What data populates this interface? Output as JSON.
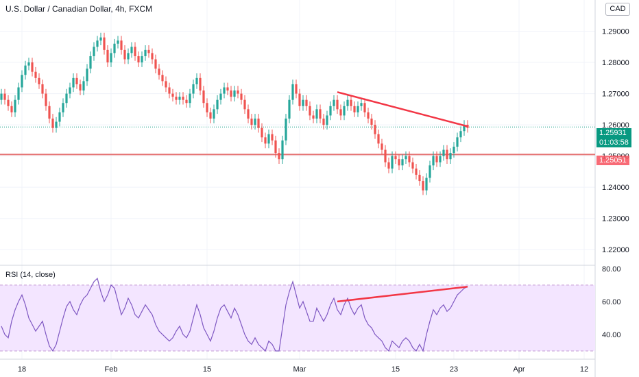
{
  "header": {
    "symbol_title": "U.S. Dollar / Canadian Dollar, 4h, FXCM",
    "currency_button": "CAD"
  },
  "price_tags": {
    "last_price": "1.25931",
    "countdown": "01:03:58",
    "level": "1.25051"
  },
  "indicator": {
    "label": "RSI (14, close)"
  },
  "colors": {
    "up": "#26a69a",
    "down": "#ef5350",
    "rsi_line": "#7e57c2",
    "rsi_band": "#f3e5ff",
    "trendline": "#f23645",
    "level_line": "#e57373",
    "last_price_line": "#089981"
  },
  "chart_data": [
    {
      "type": "candlestick",
      "title": "U.S. Dollar / Canadian Dollar, 4h, FXCM",
      "y_ticks": [
        "1.29000",
        "1.28000",
        "1.27000",
        "1.26000",
        "1.25000",
        "1.24000",
        "1.23000",
        "1.22000"
      ],
      "y_tick_values": [
        1.29,
        1.28,
        1.27,
        1.26,
        1.25,
        1.24,
        1.23,
        1.22
      ],
      "ylim": [
        1.215,
        1.3
      ],
      "x_ticks": [
        "18",
        "Feb",
        "15",
        "Mar",
        "15",
        "23",
        "Apr",
        "12"
      ],
      "x_tick_index": [
        6,
        32,
        60,
        87,
        115,
        132,
        151,
        170
      ],
      "x_count": 175,
      "grid": true,
      "close_series": [
        1.27,
        1.268,
        1.266,
        1.264,
        1.268,
        1.272,
        1.276,
        1.279,
        1.28,
        1.277,
        1.275,
        1.273,
        1.27,
        1.266,
        1.262,
        1.259,
        1.261,
        1.264,
        1.267,
        1.27,
        1.272,
        1.275,
        1.273,
        1.271,
        1.274,
        1.278,
        1.282,
        1.285,
        1.287,
        1.288,
        1.284,
        1.28,
        1.283,
        1.286,
        1.287,
        1.284,
        1.281,
        1.283,
        1.285,
        1.282,
        1.28,
        1.282,
        1.284,
        1.283,
        1.281,
        1.278,
        1.276,
        1.274,
        1.272,
        1.27,
        1.269,
        1.268,
        1.269,
        1.268,
        1.267,
        1.27,
        1.273,
        1.275,
        1.271,
        1.267,
        1.264,
        1.262,
        1.265,
        1.268,
        1.27,
        1.272,
        1.271,
        1.269,
        1.271,
        1.27,
        1.268,
        1.265,
        1.262,
        1.26,
        1.262,
        1.259,
        1.256,
        1.254,
        1.257,
        1.255,
        1.251,
        1.249,
        1.255,
        1.262,
        1.268,
        1.273,
        1.27,
        1.266,
        1.268,
        1.266,
        1.263,
        1.262,
        1.265,
        1.262,
        1.26,
        1.263,
        1.266,
        1.268,
        1.265,
        1.263,
        1.266,
        1.268,
        1.266,
        1.264,
        1.266,
        1.267,
        1.264,
        1.262,
        1.26,
        1.257,
        1.254,
        1.252,
        1.248,
        1.246,
        1.25,
        1.249,
        1.247,
        1.249,
        1.25,
        1.248,
        1.246,
        1.244,
        1.242,
        1.239,
        1.243,
        1.247,
        1.25,
        1.248,
        1.25,
        1.252,
        1.249,
        1.251,
        1.253,
        1.256,
        1.258,
        1.26,
        1.259
      ],
      "annotations": {
        "resistance_trendline": {
          "from": {
            "x_index": 98,
            "price": 1.2705
          },
          "to": {
            "x_index": 136,
            "price": 1.2595
          }
        },
        "horizontal_level": 1.25051,
        "last_price": 1.25931
      }
    },
    {
      "type": "line",
      "title": "RSI (14, close)",
      "y_ticks": [
        "80.00",
        "60.00",
        "40.00"
      ],
      "y_tick_values": [
        80,
        60,
        40
      ],
      "ylim": [
        25,
        82
      ],
      "band": [
        30,
        70
      ],
      "series": [
        {
          "values": [
            45,
            40,
            38,
            48,
            55,
            60,
            64,
            58,
            50,
            46,
            42,
            45,
            48,
            40,
            33,
            30,
            34,
            42,
            50,
            57,
            60,
            55,
            52,
            58,
            62,
            64,
            68,
            72,
            74,
            66,
            60,
            64,
            70,
            68,
            60,
            52,
            56,
            62,
            58,
            52,
            50,
            54,
            58,
            55,
            52,
            46,
            42,
            40,
            38,
            36,
            38,
            42,
            45,
            40,
            38,
            42,
            50,
            58,
            52,
            44,
            40,
            36,
            42,
            50,
            56,
            58,
            54,
            50,
            56,
            52,
            46,
            40,
            36,
            34,
            38,
            34,
            32,
            30,
            36,
            34,
            30,
            30,
            44,
            58,
            66,
            72,
            64,
            56,
            60,
            54,
            48,
            48,
            56,
            52,
            48,
            52,
            58,
            62,
            55,
            52,
            58,
            62,
            56,
            52,
            56,
            58,
            50,
            46,
            44,
            40,
            38,
            36,
            32,
            30,
            36,
            34,
            32,
            36,
            38,
            36,
            32,
            30,
            34,
            30,
            40,
            48,
            55,
            52,
            56,
            58,
            54,
            56,
            60,
            64,
            66,
            68,
            69
          ]
        }
      ],
      "annotations": {
        "divergence_line": {
          "from": {
            "x_index": 98,
            "value": 60
          },
          "to": {
            "x_index": 136,
            "value": 69
          }
        }
      }
    }
  ]
}
